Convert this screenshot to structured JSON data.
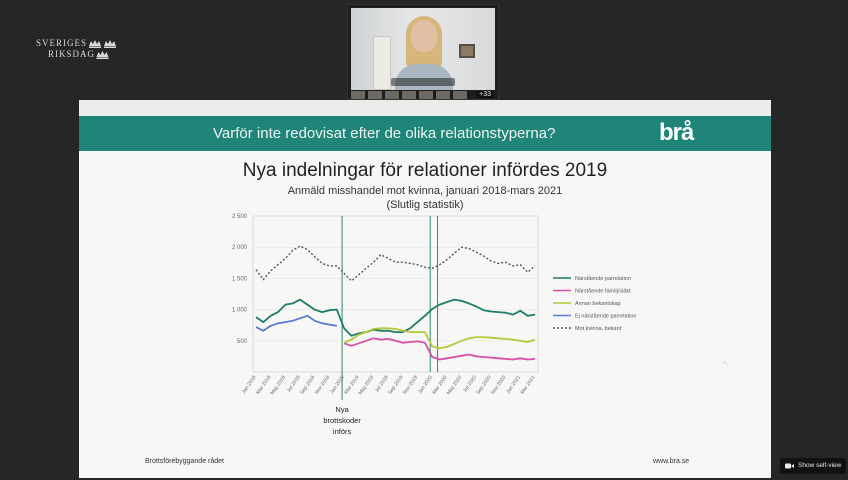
{
  "org": {
    "line1": "SVERIGES",
    "line2": "RIKSDAG"
  },
  "video": {
    "participants_badge": "+33"
  },
  "slide": {
    "banner_title": "Varför inte redovisat efter de olika relationstyperna?",
    "brand": "brå",
    "title": "Nya indelningar för relationer infördes 2019",
    "subtitle": "Anmäld misshandel mot kvinna, januari 2018-mars 2021",
    "subtitle2": "(Slutlig statistik)",
    "annotation": [
      "Nya",
      "brottskoder",
      "införs"
    ],
    "footer_left": "Brottsförebyggande rådet",
    "footer_right": "www.bra.se"
  },
  "self_view_label": "Show self-view",
  "colors": {
    "banner": "#1f8579",
    "background": "#262626"
  },
  "chart_data": {
    "type": "line",
    "title": "Nya indelningar för relationer infördes 2019",
    "ylim": [
      0,
      2500
    ],
    "y_ticks": [
      500,
      1000,
      1500,
      2000,
      2500
    ],
    "y_tick_labels": [
      "500",
      "1 000",
      "1 500",
      "2 000",
      "2 500"
    ],
    "x_tick_labels": [
      "Jan 2018",
      "Mar 2018",
      "May 2018",
      "Jul 2018",
      "Sep 2018",
      "Nov 2018",
      "Jan 2019",
      "Mar 2019",
      "May 2019",
      "Jul 2019",
      "Sep 2019",
      "Nov 2019",
      "Jan 2020",
      "Mar 2020",
      "May 2020",
      "Jul 2020",
      "Sep 2020",
      "Nov 2020",
      "Jan 2021",
      "Mar 2021"
    ],
    "months": 39,
    "vertical_markers": [
      12,
      24,
      25
    ],
    "series": [
      {
        "name": "Närstående parrelation",
        "color": "#1e7c6a",
        "dash": "none",
        "start": 0,
        "values": [
          880,
          800,
          900,
          960,
          1080,
          1100,
          1160,
          1080,
          1000,
          960,
          990,
          1000,
          700,
          580,
          620,
          640,
          680,
          660,
          660,
          640,
          640,
          700,
          800,
          900,
          1010,
          1080,
          1120,
          1160,
          1140,
          1100,
          1050,
          990,
          970,
          960,
          950,
          920,
          980,
          900,
          920
        ]
      },
      {
        "name": "Närstående familj/släkt",
        "color": "#d84fa6",
        "dash": "none",
        "start": 12,
        "values": [
          460,
          420,
          460,
          500,
          540,
          520,
          530,
          500,
          470,
          480,
          490,
          470,
          240,
          200,
          220,
          240,
          260,
          280,
          250,
          240,
          230,
          220,
          210,
          200,
          220,
          200,
          210
        ]
      },
      {
        "name": "Annan bekantskap",
        "color": "#b7c93a",
        "dash": "none",
        "start": 12,
        "values": [
          470,
          520,
          600,
          640,
          690,
          700,
          700,
          690,
          660,
          640,
          640,
          640,
          410,
          380,
          400,
          450,
          500,
          540,
          560,
          560,
          550,
          540,
          530,
          520,
          500,
          480,
          520
        ]
      },
      {
        "name": "Ej närstående parrelation",
        "color": "#5b79d8",
        "dash": "none",
        "start": 0,
        "values": [
          720,
          660,
          740,
          780,
          800,
          820,
          860,
          900,
          820,
          780,
          760,
          740
        ]
      },
      {
        "name": "Mot kvinna, bekant",
        "color": "#555555",
        "dash": "2,2",
        "start": 0,
        "values": [
          1640,
          1480,
          1620,
          1720,
          1820,
          1950,
          2020,
          1960,
          1850,
          1740,
          1700,
          1700,
          1580,
          1460,
          1560,
          1660,
          1760,
          1880,
          1820,
          1760,
          1760,
          1740,
          1720,
          1680,
          1660,
          1720,
          1800,
          1900,
          2000,
          1980,
          1920,
          1860,
          1780,
          1740,
          1760,
          1700,
          1720,
          1600,
          1700
        ]
      }
    ]
  }
}
